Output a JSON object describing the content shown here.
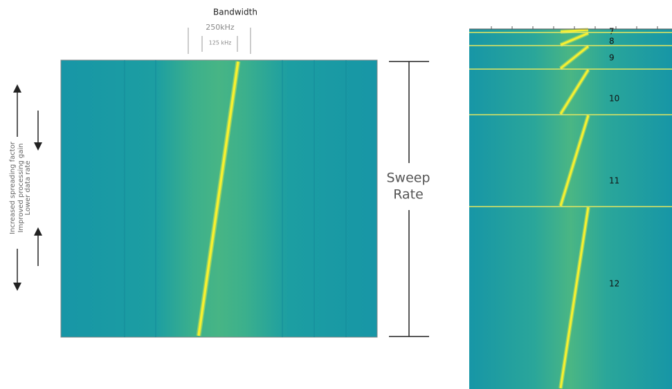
{
  "header": {
    "title": "Bandwidth",
    "bw_outer": "250kHz",
    "bw_inner": "125 kHz"
  },
  "side_labels": [
    "Increased spreading factor",
    "Improved processing gain",
    "Lower data rate"
  ],
  "sweep_rate": [
    "Sweep",
    "Rate"
  ],
  "spreading_factors": [
    "7",
    "8",
    "9",
    "10",
    "11",
    "12"
  ]
}
